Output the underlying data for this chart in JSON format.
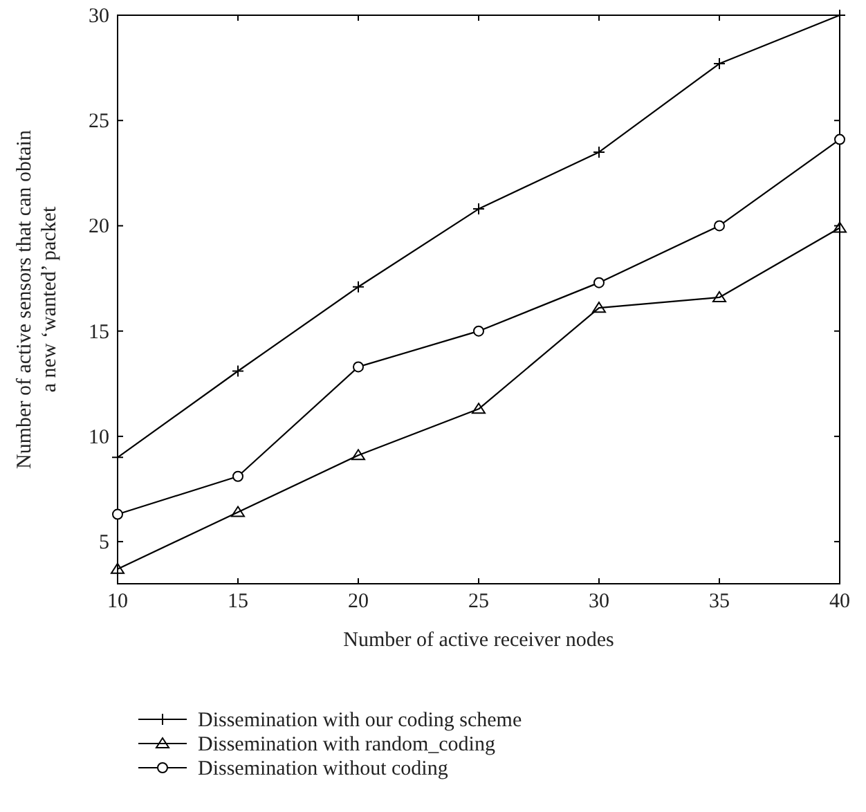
{
  "chart_data": {
    "type": "line",
    "xlabel": "Number of active receiver nodes",
    "ylabel": "Number of active sensors that can obtain\na new ‘wanted’ packet",
    "x": [
      10,
      15,
      20,
      25,
      30,
      35,
      40
    ],
    "xlim": [
      10,
      40
    ],
    "xticks": [
      10,
      15,
      20,
      25,
      30,
      35,
      40
    ],
    "ylim": [
      3,
      30
    ],
    "yticks": [
      5,
      10,
      15,
      20,
      25,
      30
    ],
    "grid": false,
    "legend": "bottom",
    "line_style": "solid",
    "series": [
      {
        "name": "Dissemination with our coding scheme",
        "color": "#000000",
        "marker": "cross",
        "values": [
          9,
          13.1,
          17.1,
          20.8,
          23.5,
          27.7,
          30
        ]
      },
      {
        "name": "Dissemination with random_coding",
        "color": "#000000",
        "marker": "triangle",
        "values": [
          3.7,
          6.4,
          9.1,
          11.3,
          16.1,
          16.6,
          19.9
        ]
      },
      {
        "name": "Dissemination without coding",
        "color": "#000000",
        "marker": "circle",
        "values": [
          6.3,
          8.1,
          13.3,
          15.0,
          17.3,
          20.0,
          24.1
        ]
      }
    ]
  }
}
